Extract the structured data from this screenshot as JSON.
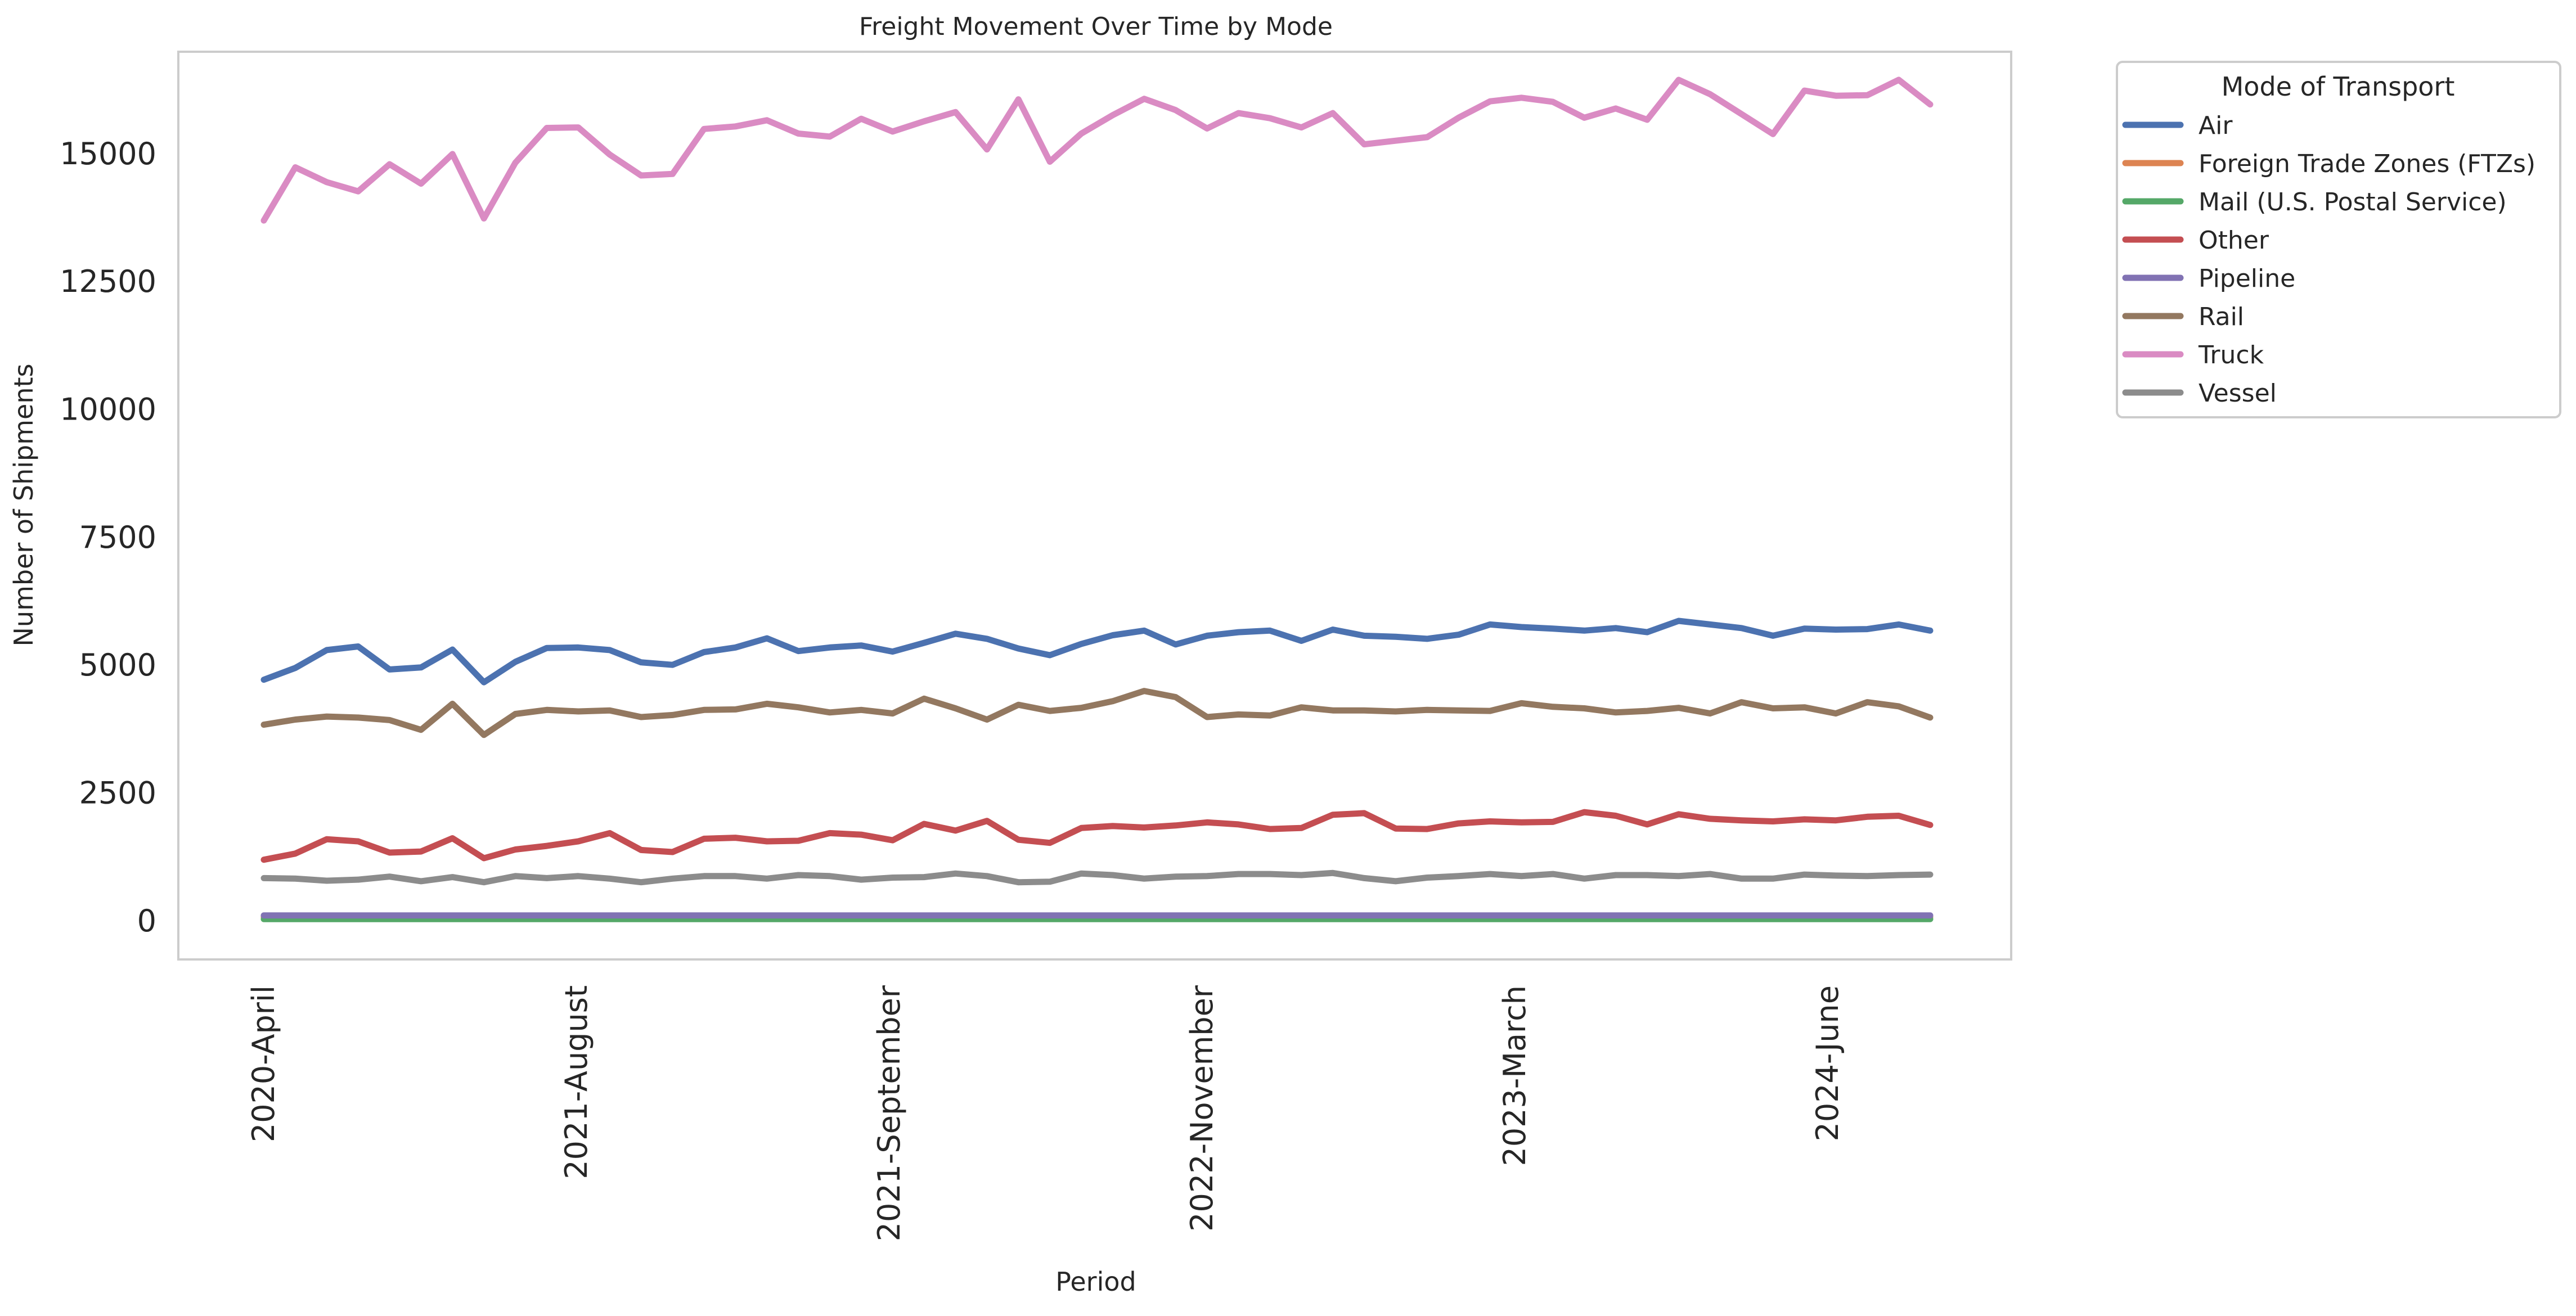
{
  "chart_data": {
    "type": "line",
    "title": "Freight Movement Over Time by Mode",
    "xlabel": "Period",
    "ylabel": "Number of Shipments",
    "x_tick_labels": [
      "2020-April",
      "2021-August",
      "2021-September",
      "2022-November",
      "2023-March",
      "2024-June"
    ],
    "y_ticks": [
      0,
      2500,
      5000,
      7500,
      10000,
      12500,
      15000
    ],
    "ylim": [
      -750,
      17000
    ],
    "grid": false,
    "legend": {
      "title": "Mode of Transport",
      "placement": "outside upper right"
    },
    "series": [
      {
        "name": "Air",
        "color": "#4c72b0",
        "values": [
          4720,
          4950,
          5300,
          5370,
          4920,
          4960,
          5310,
          4670,
          5070,
          5340,
          5350,
          5300,
          5060,
          5010,
          5260,
          5350,
          5530,
          5280,
          5350,
          5390,
          5270,
          5440,
          5620,
          5520,
          5330,
          5200,
          5420,
          5590,
          5680,
          5410,
          5580,
          5650,
          5680,
          5480,
          5700,
          5580,
          5560,
          5520,
          5600,
          5800,
          5750,
          5720,
          5680,
          5730,
          5650,
          5870,
          5800,
          5730,
          5580,
          5720,
          5700,
          5710,
          5800,
          5680
        ]
      },
      {
        "name": "Foreign Trade Zones (FTZs)",
        "color": "#dd8452",
        "values": [
          80,
          80,
          80,
          80,
          80,
          80,
          80,
          80,
          80,
          80,
          80,
          80,
          80,
          80,
          80,
          80,
          80,
          80,
          80,
          80,
          80,
          80,
          80,
          80,
          80,
          80,
          80,
          80,
          80,
          80,
          80,
          80,
          80,
          80,
          80,
          80,
          80,
          80,
          80,
          80,
          80,
          80,
          80,
          80,
          80,
          80,
          80,
          80,
          80,
          80,
          80,
          80,
          80,
          80
        ]
      },
      {
        "name": "Mail (U.S. Postal Service)",
        "color": "#55a868",
        "values": [
          40,
          40,
          40,
          40,
          40,
          40,
          40,
          40,
          40,
          40,
          40,
          40,
          40,
          40,
          40,
          40,
          40,
          40,
          40,
          40,
          40,
          40,
          40,
          40,
          40,
          40,
          40,
          40,
          40,
          40,
          40,
          40,
          40,
          40,
          40,
          40,
          40,
          40,
          40,
          40,
          40,
          40,
          40,
          40,
          40,
          40,
          40,
          40,
          40,
          40,
          40,
          40,
          40,
          40
        ]
      },
      {
        "name": "Other",
        "color": "#c44e52",
        "values": [
          1200,
          1320,
          1600,
          1560,
          1340,
          1360,
          1620,
          1230,
          1400,
          1470,
          1560,
          1720,
          1390,
          1350,
          1610,
          1630,
          1560,
          1570,
          1720,
          1690,
          1580,
          1900,
          1770,
          1960,
          1590,
          1530,
          1820,
          1860,
          1830,
          1870,
          1930,
          1890,
          1800,
          1820,
          2080,
          2110,
          1810,
          1800,
          1910,
          1950,
          1930,
          1940,
          2130,
          2060,
          1890,
          2090,
          2000,
          1970,
          1950,
          1990,
          1970,
          2040,
          2060,
          1880
        ]
      },
      {
        "name": "Pipeline",
        "color": "#8172b3",
        "values": [
          110,
          110,
          110,
          110,
          110,
          110,
          110,
          110,
          110,
          110,
          110,
          110,
          110,
          110,
          110,
          110,
          110,
          110,
          110,
          110,
          110,
          110,
          110,
          110,
          110,
          110,
          110,
          110,
          110,
          110,
          110,
          110,
          110,
          110,
          110,
          110,
          110,
          110,
          110,
          110,
          110,
          110,
          110,
          110,
          110,
          110,
          110,
          110,
          110,
          110,
          110,
          110,
          110,
          110
        ]
      },
      {
        "name": "Rail",
        "color": "#937860",
        "values": [
          3840,
          3940,
          4000,
          3980,
          3930,
          3740,
          4250,
          3640,
          4050,
          4130,
          4100,
          4120,
          3990,
          4030,
          4130,
          4140,
          4250,
          4180,
          4080,
          4130,
          4060,
          4350,
          4160,
          3940,
          4230,
          4110,
          4170,
          4300,
          4500,
          4380,
          3990,
          4040,
          4020,
          4180,
          4120,
          4120,
          4100,
          4130,
          4120,
          4110,
          4260,
          4190,
          4160,
          4080,
          4110,
          4170,
          4060,
          4280,
          4160,
          4180,
          4060,
          4280,
          4200,
          3980
        ]
      },
      {
        "name": "Truck",
        "color": "#da8bc3",
        "values": [
          13700,
          14740,
          14450,
          14270,
          14800,
          14420,
          15000,
          13740,
          14830,
          15510,
          15520,
          14990,
          14580,
          14610,
          15490,
          15540,
          15660,
          15400,
          15340,
          15690,
          15440,
          15640,
          15820,
          15090,
          16070,
          14850,
          15400,
          15760,
          16080,
          15860,
          15500,
          15800,
          15700,
          15520,
          15800,
          15190,
          15260,
          15330,
          15710,
          16030,
          16100,
          16020,
          15710,
          15890,
          15670,
          16450,
          16170,
          15780,
          15390,
          16240,
          16140,
          16150,
          16450,
          15970
        ]
      },
      {
        "name": "Vessel",
        "color": "#8c8c8c",
        "values": [
          840,
          830,
          790,
          810,
          870,
          780,
          860,
          760,
          880,
          840,
          880,
          830,
          760,
          830,
          880,
          880,
          830,
          900,
          880,
          810,
          850,
          860,
          930,
          880,
          760,
          770,
          930,
          900,
          830,
          870,
          880,
          920,
          920,
          900,
          940,
          840,
          780,
          850,
          880,
          920,
          880,
          920,
          830,
          900,
          900,
          880,
          920,
          830,
          830,
          910,
          890,
          880,
          900,
          910
        ]
      }
    ]
  }
}
